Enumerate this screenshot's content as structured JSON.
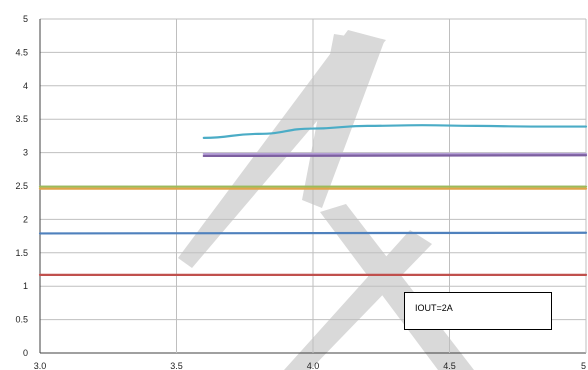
{
  "chart_data": {
    "type": "line",
    "title": "",
    "xlabel": "",
    "ylabel": "",
    "xlim": [
      3.0,
      5.0
    ],
    "ylim": [
      0,
      5
    ],
    "x_ticks": [
      3.0,
      3.5,
      4.0,
      4.5,
      5.0
    ],
    "x_tick_labels": [
      "3.0",
      "3.5",
      "4.0",
      "4.5",
      "5"
    ],
    "y_ticks": [
      0,
      0.5,
      1,
      1.5,
      2,
      2.5,
      3,
      3.5,
      4,
      4.5,
      5
    ],
    "y_tick_labels": [
      "0",
      "0.5",
      "1",
      "1.5",
      "2",
      "2.5",
      "3",
      "3.5",
      "4",
      "4.5",
      "5"
    ],
    "grid": true,
    "annotation": "IOUT=2A",
    "colors": {
      "grid": "#bfbfbf",
      "axis": "#404040",
      "watermark": "#d9d9d9"
    },
    "series": [
      {
        "color": "#4bacc6",
        "points": [
          [
            3.6,
            3.22
          ],
          [
            3.8,
            3.28
          ],
          [
            4.0,
            3.36
          ],
          [
            4.2,
            3.4
          ],
          [
            4.4,
            3.41
          ],
          [
            4.6,
            3.4
          ],
          [
            4.8,
            3.39
          ],
          [
            5.0,
            3.39
          ]
        ]
      },
      {
        "color": "#b49fd6",
        "points": [
          [
            3.6,
            2.98
          ],
          [
            5.0,
            2.98
          ]
        ]
      },
      {
        "color": "#7d5fa0",
        "points": [
          [
            3.6,
            2.95
          ],
          [
            5.0,
            2.96
          ]
        ]
      },
      {
        "color": "#9bbb59",
        "points": [
          [
            3.0,
            2.49
          ],
          [
            5.0,
            2.49
          ]
        ]
      },
      {
        "color": "#e0a44a",
        "points": [
          [
            3.0,
            2.46
          ],
          [
            5.0,
            2.46
          ]
        ]
      },
      {
        "color": "#4f81bd",
        "points": [
          [
            3.0,
            1.79
          ],
          [
            5.0,
            1.8
          ]
        ]
      },
      {
        "color": "#c0504d",
        "points": [
          [
            3.0,
            1.17
          ],
          [
            5.0,
            1.17
          ]
        ]
      }
    ]
  }
}
